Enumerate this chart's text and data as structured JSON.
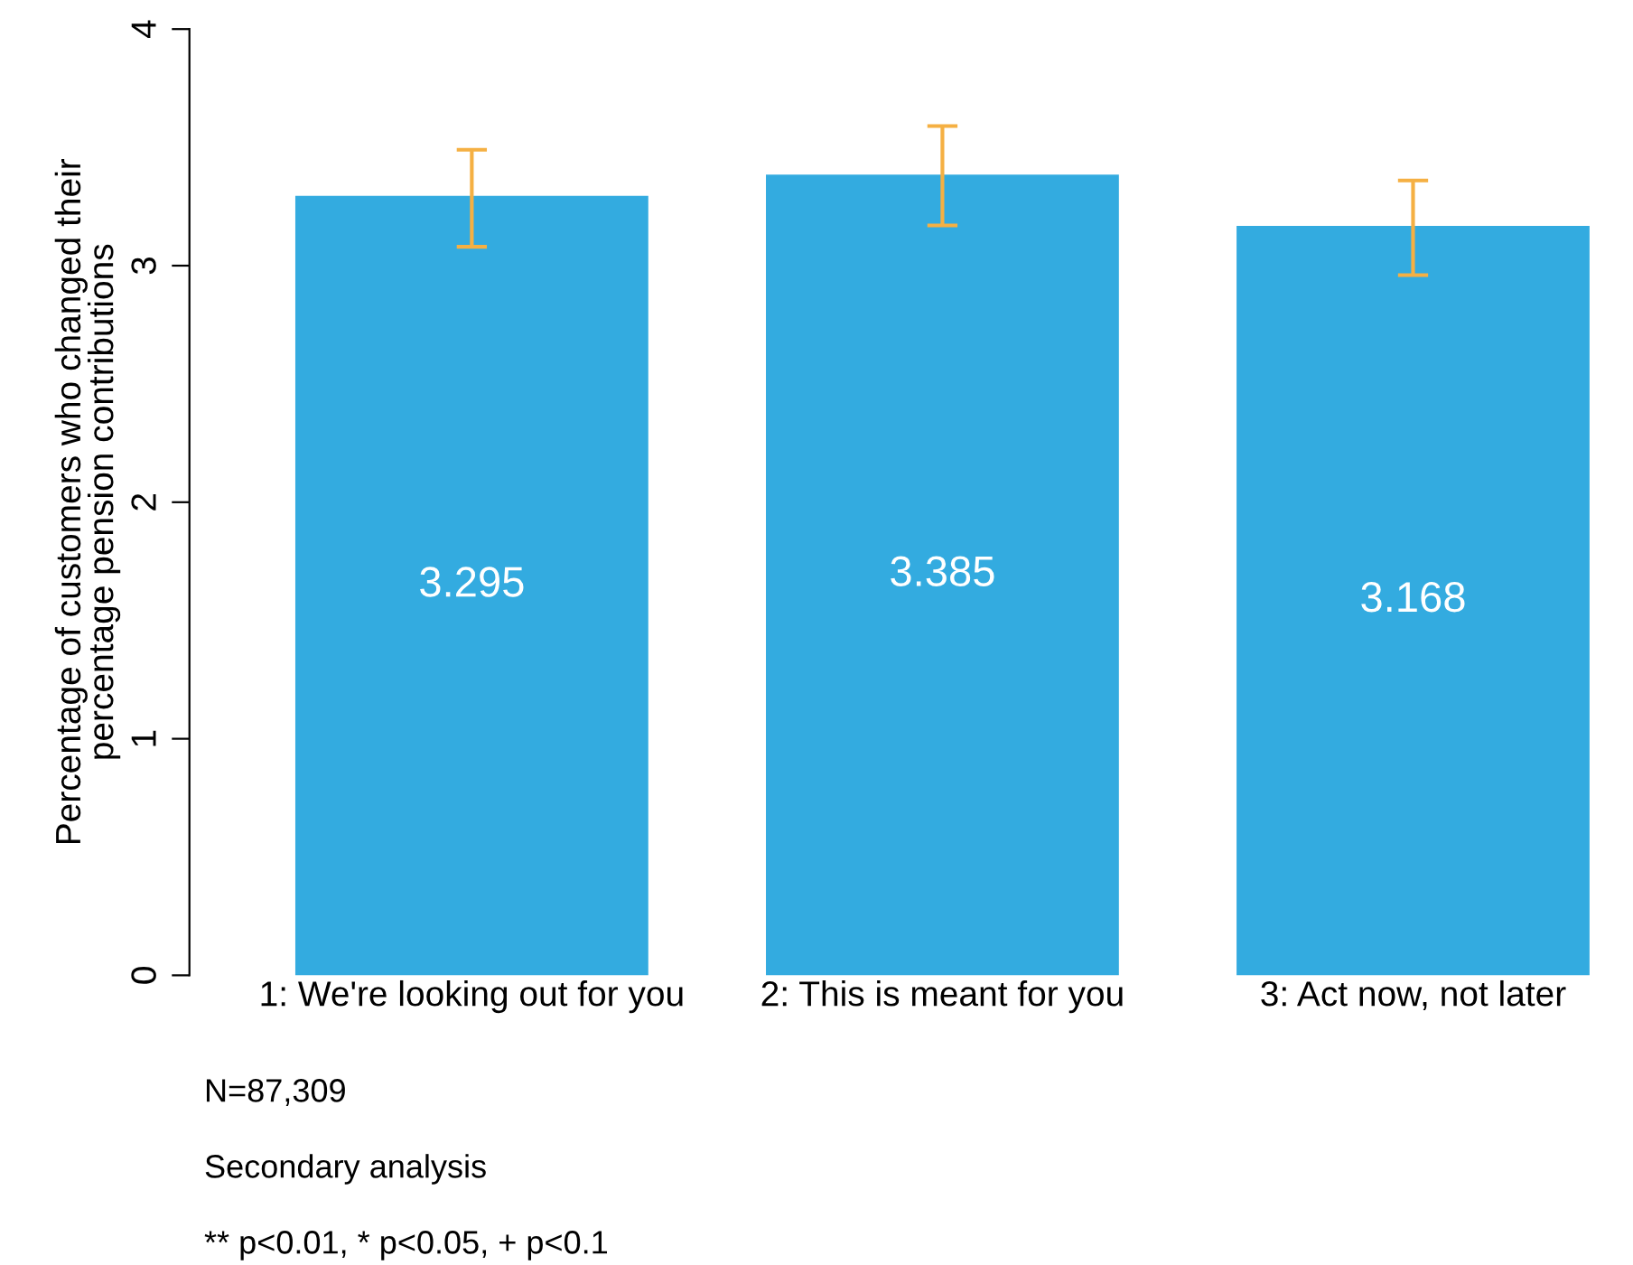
{
  "chart_data": {
    "type": "bar",
    "ylabel": "Percentage of customers who changed their\npercentage pension contributions",
    "categories": [
      "1: We're looking out for you",
      "2: This is meant for you",
      "3: Act now, not later"
    ],
    "values": [
      3.295,
      3.385,
      3.168
    ],
    "errors": [
      [
        3.08,
        3.49
      ],
      [
        3.17,
        3.59
      ],
      [
        2.96,
        3.36
      ]
    ],
    "color": "#33abe0",
    "data_labels": true,
    "ylim": [
      0,
      4
    ],
    "yticks": [
      0,
      1,
      2,
      3,
      4
    ],
    "grid": false,
    "annotations": [
      "N=87,309",
      "Secondary analysis",
      "** p<0.01, * p<0.05, + p<0.1"
    ]
  }
}
